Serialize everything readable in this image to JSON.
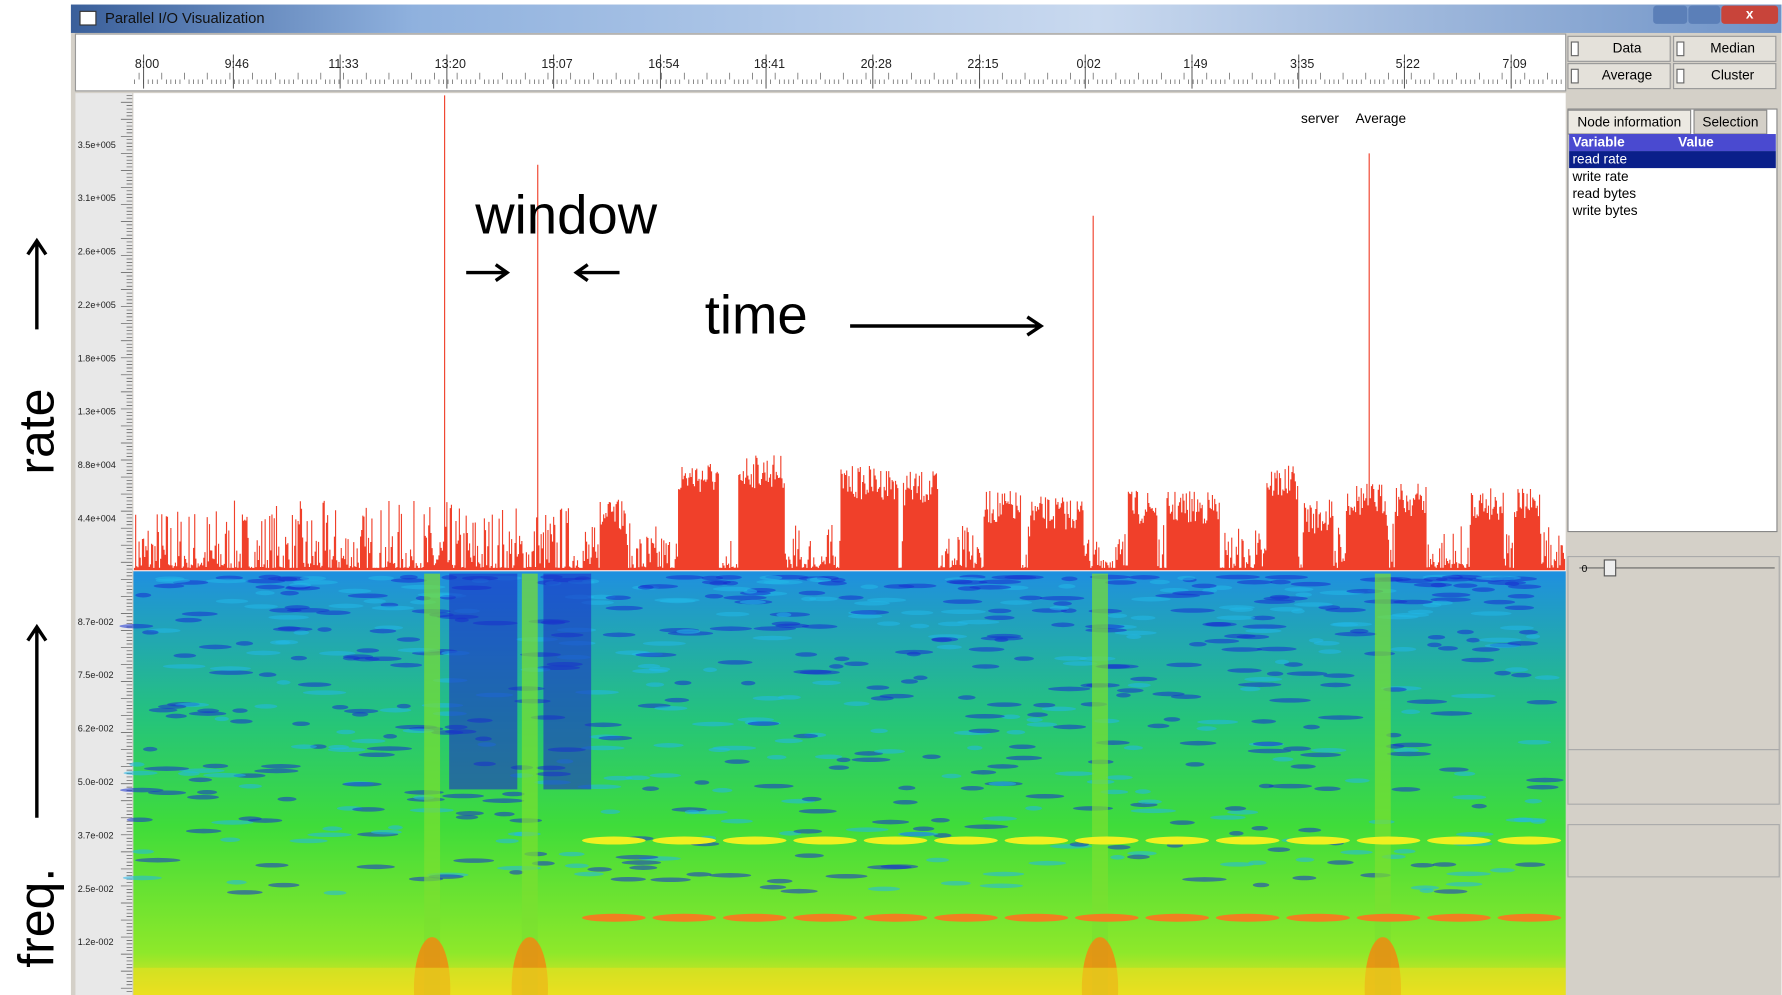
{
  "window": {
    "title": "Parallel I/O Visualization"
  },
  "time_axis": {
    "labels": [
      "8:00",
      "9:46",
      "11:33",
      "13:20",
      "15:07",
      "16:54",
      "18:41",
      "20:28",
      "22:15",
      "0:02",
      "1:49",
      "3:35",
      "5:22",
      "7:09"
    ]
  },
  "rate_axis": {
    "label": "rate",
    "ticks": [
      "3.5e+005",
      "3.1e+005",
      "2.6e+005",
      "2.2e+005",
      "1.8e+005",
      "1.3e+005",
      "8.8e+004",
      "4.4e+004"
    ]
  },
  "freq_axis": {
    "label": "freq.",
    "ticks": [
      "8.7e-002",
      "7.5e-002",
      "6.2e-002",
      "5.0e-002",
      "3.7e-002",
      "2.5e-002",
      "1.2e-002"
    ]
  },
  "annotations": {
    "window": "window",
    "time": "time"
  },
  "plot": {
    "series_label": "server",
    "statistic_label": "Average"
  },
  "controls": {
    "checkboxes": [
      "Data",
      "Median",
      "Average",
      "Cluster"
    ],
    "tabs": [
      "Node information",
      "Selection"
    ],
    "table": {
      "header": [
        "Variable",
        "Value"
      ],
      "rows": [
        "read rate",
        "write rate",
        "read bytes",
        "write bytes"
      ]
    },
    "slider": {
      "value": "0"
    }
  }
}
